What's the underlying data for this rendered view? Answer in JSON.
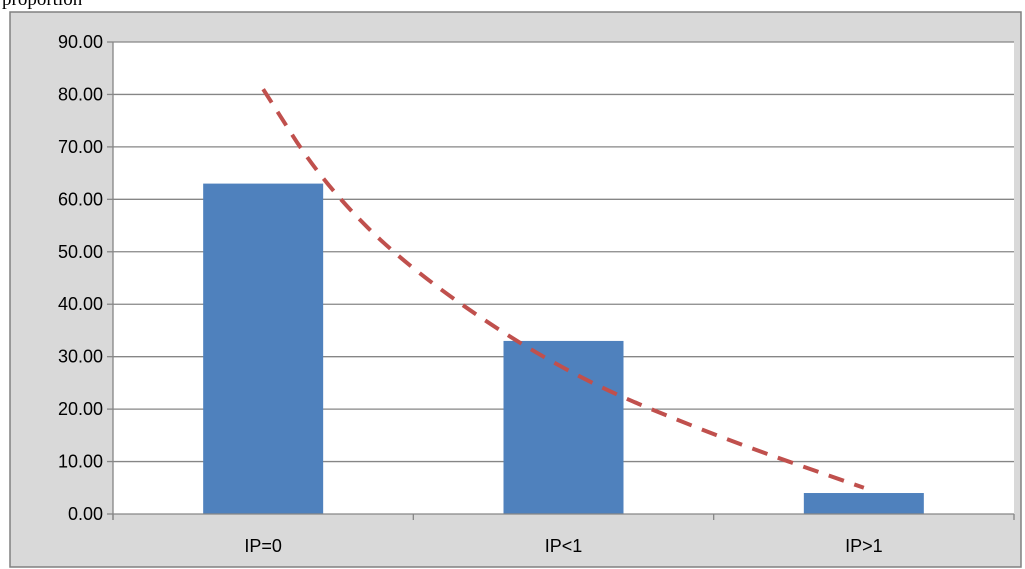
{
  "header_fragment": "proportion",
  "chart_data": {
    "type": "bar",
    "categories": [
      "IP=0",
      "IP<1",
      "IP>1"
    ],
    "values": [
      63,
      33,
      4
    ],
    "trendline": {
      "style": "dashed",
      "color": "#c0504d",
      "points": [
        [
          0,
          81
        ],
        [
          0.2,
          63
        ],
        [
          0.5,
          46
        ],
        [
          1,
          27
        ],
        [
          1.5,
          15
        ],
        [
          2,
          5
        ]
      ]
    },
    "ylim": [
      0,
      90
    ],
    "yticks": [
      "0.00",
      "10.00",
      "20.00",
      "30.00",
      "40.00",
      "50.00",
      "60.00",
      "70.00",
      "80.00",
      "90.00"
    ],
    "grid": true,
    "bar_color": "#4f81bd",
    "plot_background": "#ffffff",
    "chart_background": "#d9d9d9",
    "legend": "none"
  }
}
